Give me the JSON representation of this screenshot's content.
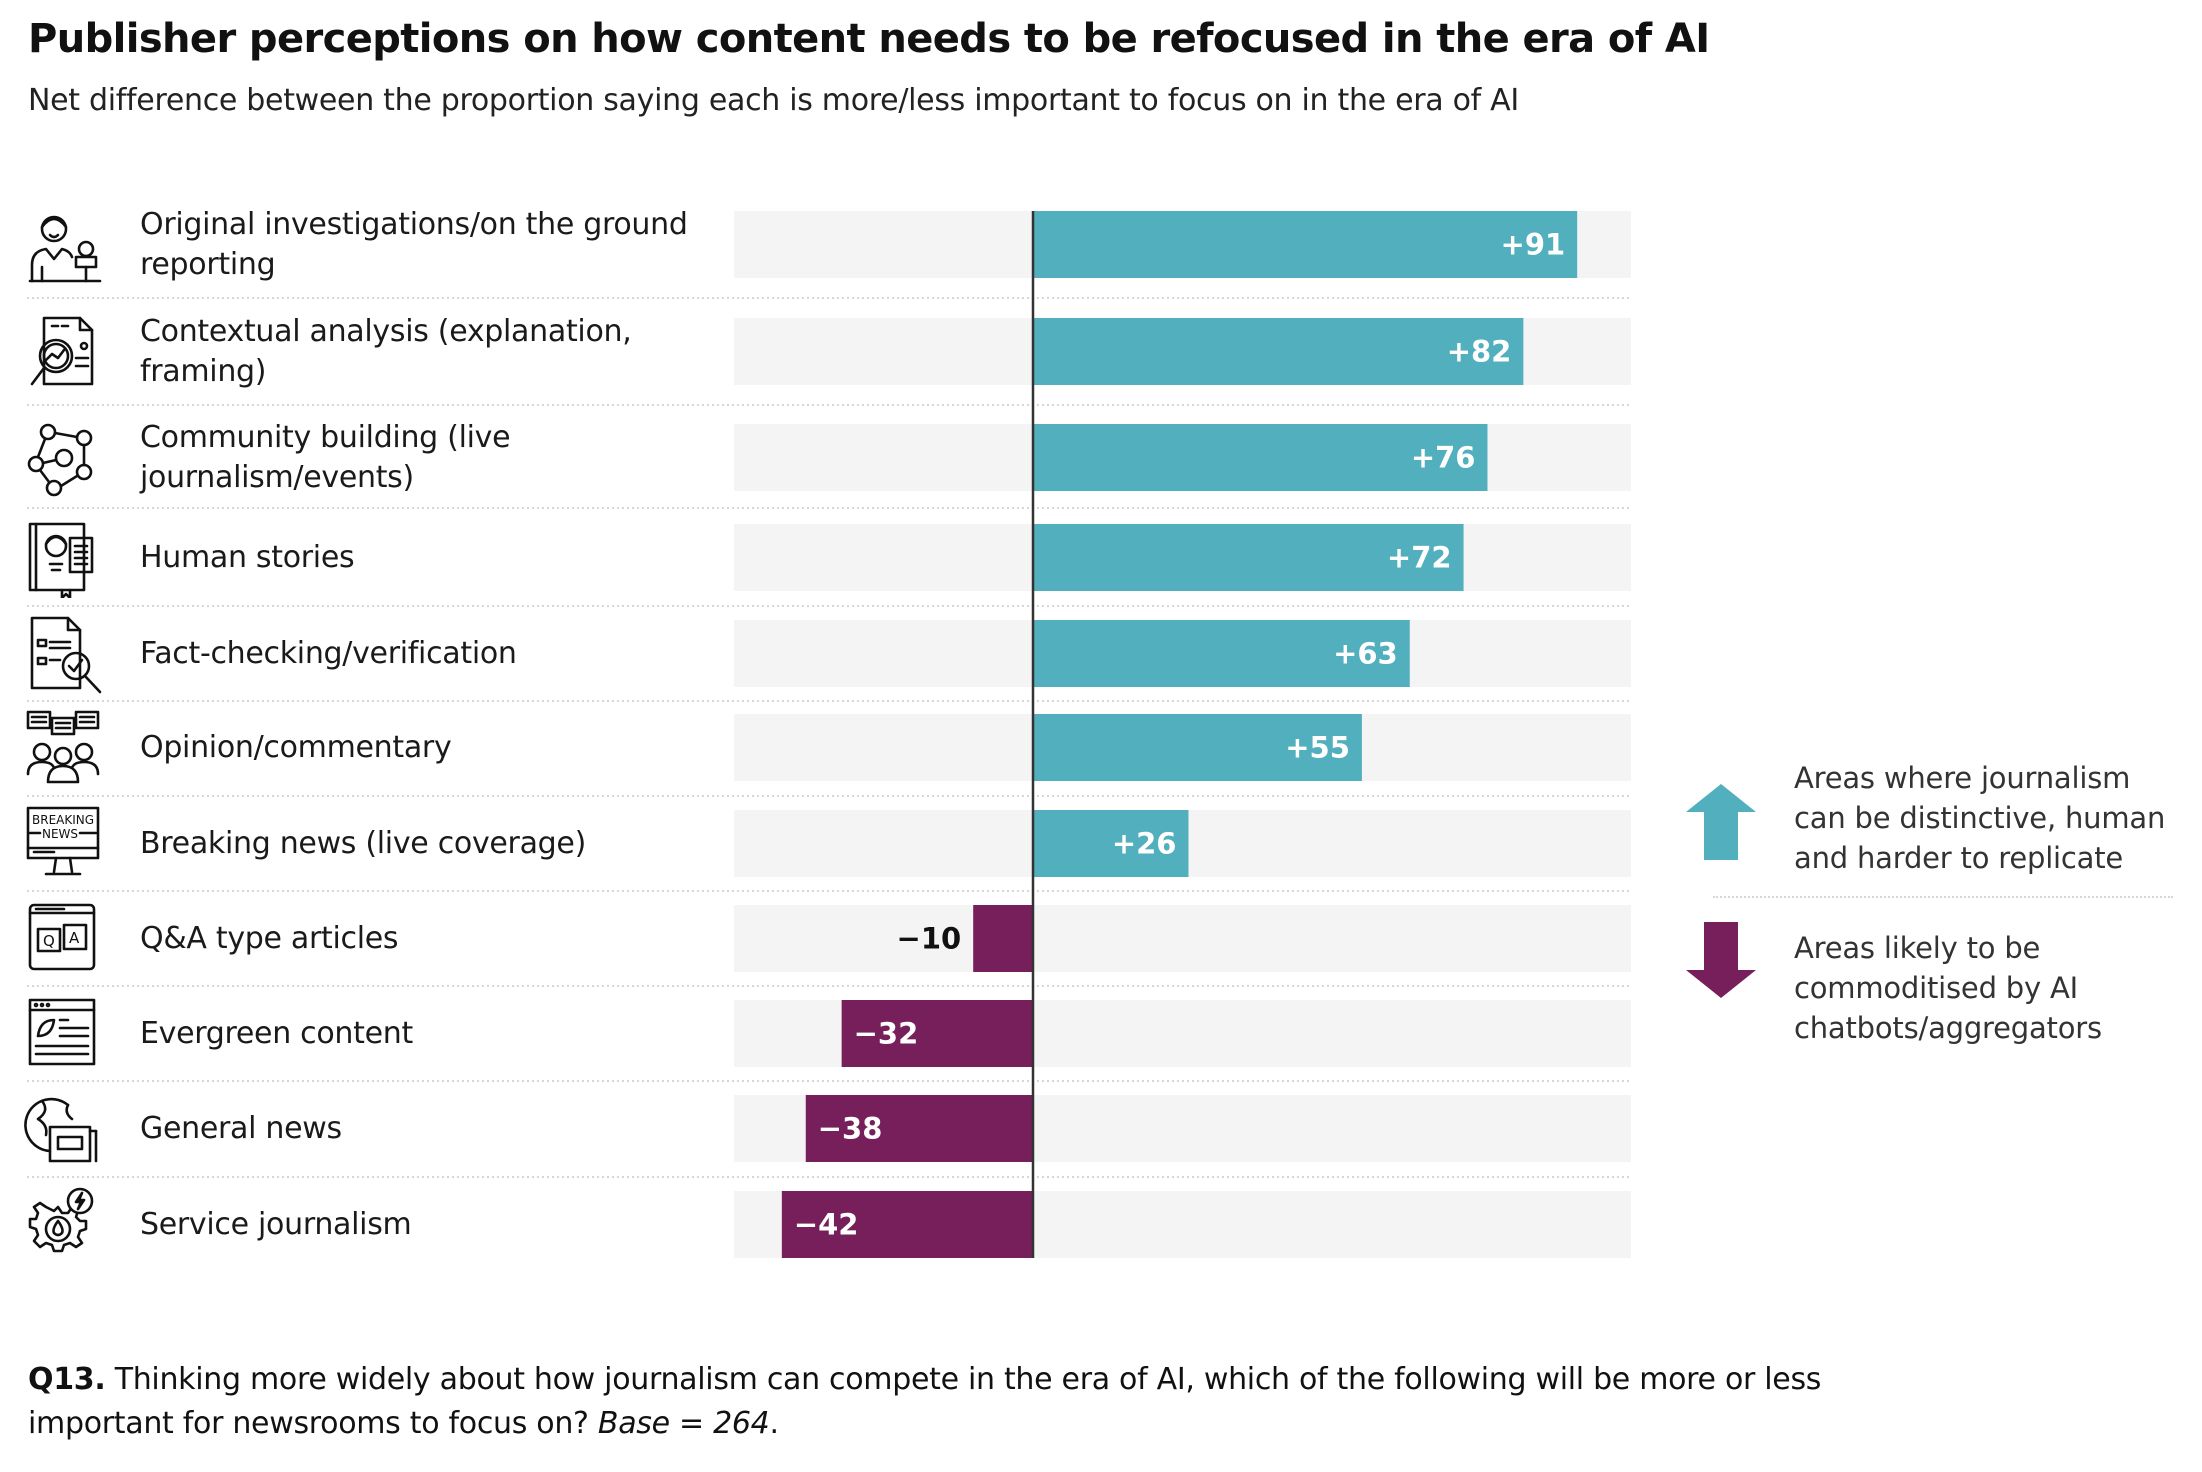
{
  "title": "Publisher perceptions on how content needs to be refocused in the era of AI",
  "subtitle": "Net difference between the proportion saying each is more/less important to focus on in the era of AI",
  "colors": {
    "positive": "#52afbe",
    "negative": "#761f5a",
    "track": "#f4f4f4",
    "zero_line": "#333333",
    "separator": "#d6d6d6"
  },
  "rows": [
    {
      "label_lines": [
        "Original investigations/on the ground",
        "reporting"
      ],
      "icon": "reporter-microphone-icon"
    },
    {
      "label_lines": [
        "Contextual analysis (explanation,",
        "framing)"
      ],
      "icon": "document-magnifier-analysis-icon"
    },
    {
      "label_lines": [
        "Community building (live",
        "journalism/events)"
      ],
      "icon": "community-network-icon"
    },
    {
      "label_lines": [
        "Human stories"
      ],
      "icon": "book-person-story-icon"
    },
    {
      "label_lines": [
        "Fact-checking/verification"
      ],
      "icon": "checklist-magnifier-icon"
    },
    {
      "label_lines": [
        "Opinion/commentary"
      ],
      "icon": "people-speech-bubbles-icon"
    },
    {
      "label_lines": [
        "Breaking news (live coverage)"
      ],
      "icon": "breaking-news-monitor-icon"
    },
    {
      "label_lines": [
        "Q&A type articles"
      ],
      "icon": "qa-browser-icon"
    },
    {
      "label_lines": [
        "Evergreen content"
      ],
      "icon": "browser-leaf-article-icon"
    },
    {
      "label_lines": [
        "General news"
      ],
      "icon": "globe-newspaper-icon"
    },
    {
      "label_lines": [
        "Service journalism"
      ],
      "icon": "gear-drop-bolt-icon"
    }
  ],
  "legend": {
    "up": {
      "icon": "arrow-up-icon",
      "lines": [
        "Areas where journalism",
        "can be distinctive, human",
        "and harder to replicate"
      ]
    },
    "down": {
      "icon": "arrow-down-icon",
      "lines": [
        "Areas likely to be",
        "commoditised by AI",
        "chatbots/aggregators"
      ]
    }
  },
  "footer": {
    "question_id": "Q13.",
    "question_line1": " Thinking more widely about how journalism can compete in the era of AI, which of the following will be more or less",
    "question_line2": "important for newsrooms to focus on? ",
    "base_label": "Base = 264",
    "base_end": "."
  },
  "chart_data": {
    "type": "bar",
    "orientation": "horizontal",
    "title": "Publisher perceptions on how content needs to be refocused in the era of AI",
    "subtitle": "Net difference between the proportion saying each is more/less important to focus on in the era of AI",
    "categories": [
      "Original investigations/on the ground reporting",
      "Contextual analysis (explanation, framing)",
      "Community building (live journalism/events)",
      "Human stories",
      "Fact-checking/verification",
      "Opinion/commentary",
      "Breaking news (live coverage)",
      "Q&A type articles",
      "Evergreen content",
      "General news",
      "Service journalism"
    ],
    "values": [
      91,
      82,
      76,
      72,
      63,
      55,
      26,
      -10,
      -32,
      -38,
      -42
    ],
    "data_labels": [
      "+91",
      "+82",
      "+76",
      "+72",
      "+63",
      "+55",
      "+26",
      "−10",
      "−32",
      "−38",
      "−42"
    ],
    "xlim": [
      -50,
      100
    ],
    "xlabel": "",
    "ylabel": "",
    "grid": false,
    "legend": [
      {
        "name": "Areas where journalism can be distinctive, human and harder to replicate",
        "color": "#52afbe",
        "direction": "up"
      },
      {
        "name": "Areas likely to be commoditised by AI chatbots/aggregators",
        "color": "#761f5a",
        "direction": "down"
      }
    ],
    "legend_position": "right"
  }
}
